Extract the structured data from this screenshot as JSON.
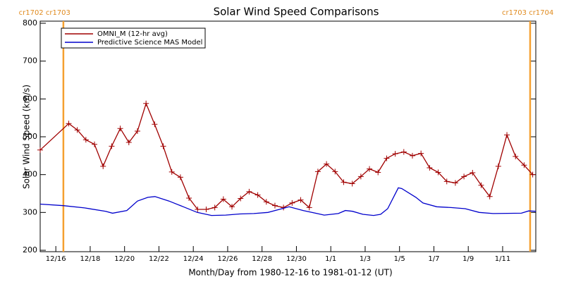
{
  "chart_data": {
    "type": "line",
    "title": "Solar Wind Speed Comparisons",
    "xlabel": "Month/Day from 1980-12-16 to 1981-01-12 (UT)",
    "ylabel": "Solar Wind Speed (km/s)",
    "xlim": [
      -0.91,
      27.93
    ],
    "ylim": [
      200,
      800
    ],
    "yticks": [
      200,
      300,
      400,
      500,
      600,
      700,
      800
    ],
    "xticks": [
      {
        "value": 0,
        "label": "12/16"
      },
      {
        "value": 2,
        "label": "12/18"
      },
      {
        "value": 4,
        "label": "12/20"
      },
      {
        "value": 6,
        "label": "12/22"
      },
      {
        "value": 8,
        "label": "12/24"
      },
      {
        "value": 10,
        "label": "12/26"
      },
      {
        "value": 12,
        "label": "12/28"
      },
      {
        "value": 14,
        "label": "12/30"
      },
      {
        "value": 16,
        "label": "1/1"
      },
      {
        "value": 18,
        "label": "1/3"
      },
      {
        "value": 20,
        "label": "1/5"
      },
      {
        "value": 22,
        "label": "1/7"
      },
      {
        "value": 24,
        "label": "1/9"
      },
      {
        "value": 26,
        "label": "1/11"
      }
    ],
    "legend": "upper left",
    "series": [
      {
        "name": "OMNI_M (12-hr avg)",
        "color": "#a00000",
        "marker": "+",
        "x": [
          -0.91,
          0.75,
          1.25,
          1.75,
          2.25,
          2.75,
          3.25,
          3.75,
          4.25,
          4.75,
          5.25,
          5.75,
          6.25,
          6.75,
          7.25,
          7.75,
          8.25,
          8.75,
          9.25,
          9.75,
          10.25,
          10.75,
          11.25,
          11.75,
          12.25,
          12.75,
          13.25,
          13.75,
          14.25,
          14.75,
          15.25,
          15.75,
          16.25,
          16.75,
          17.25,
          17.75,
          18.25,
          18.75,
          19.25,
          19.75,
          20.25,
          20.75,
          21.25,
          21.75,
          22.25,
          22.75,
          23.25,
          23.75,
          24.25,
          24.75,
          25.25,
          25.75,
          26.25,
          26.75,
          27.25,
          27.75
        ],
        "values": [
          465,
          535,
          518,
          492,
          480,
          422,
          475,
          522,
          485,
          515,
          588,
          533,
          475,
          407,
          393,
          338,
          308,
          308,
          313,
          335,
          315,
          337,
          355,
          346,
          328,
          318,
          313,
          325,
          333,
          313,
          408,
          428,
          408,
          380,
          376,
          395,
          415,
          406,
          443,
          455,
          460,
          450,
          456,
          418,
          406,
          382,
          378,
          395,
          405,
          372,
          342,
          422,
          505,
          448,
          425,
          400
        ]
      },
      {
        "name": "Predictive Science MAS Model",
        "color": "#0000cc",
        "x": [
          -0.91,
          0.44,
          1.67,
          2.9,
          3.3,
          4.13,
          4.75,
          5.36,
          5.77,
          6.59,
          7.42,
          8.23,
          9.06,
          9.88,
          10.7,
          11.52,
          12.34,
          13.16,
          13.57,
          14.39,
          15.21,
          15.62,
          16.44,
          16.85,
          17.26,
          17.87,
          18.49,
          18.9,
          19.31,
          19.93,
          20.13,
          20.95,
          21.36,
          22.17,
          22.99,
          23.82,
          24.64,
          25.45,
          27.09,
          27.51,
          27.93
        ],
        "values": [
          322,
          318,
          312,
          303,
          298,
          305,
          330,
          340,
          342,
          330,
          315,
          300,
          292,
          293,
          296,
          297,
          300,
          310,
          315,
          305,
          297,
          293,
          297,
          305,
          303,
          295,
          292,
          295,
          310,
          365,
          363,
          340,
          325,
          315,
          313,
          310,
          300,
          297,
          298,
          304,
          303
        ]
      }
    ],
    "annotations": [
      {
        "text": "cr1702 cr1703",
        "x": 0.44,
        "color": "#f5a030"
      },
      {
        "text": "cr1703 cr1704",
        "x": 27.6,
        "color": "#f5a030"
      }
    ]
  }
}
